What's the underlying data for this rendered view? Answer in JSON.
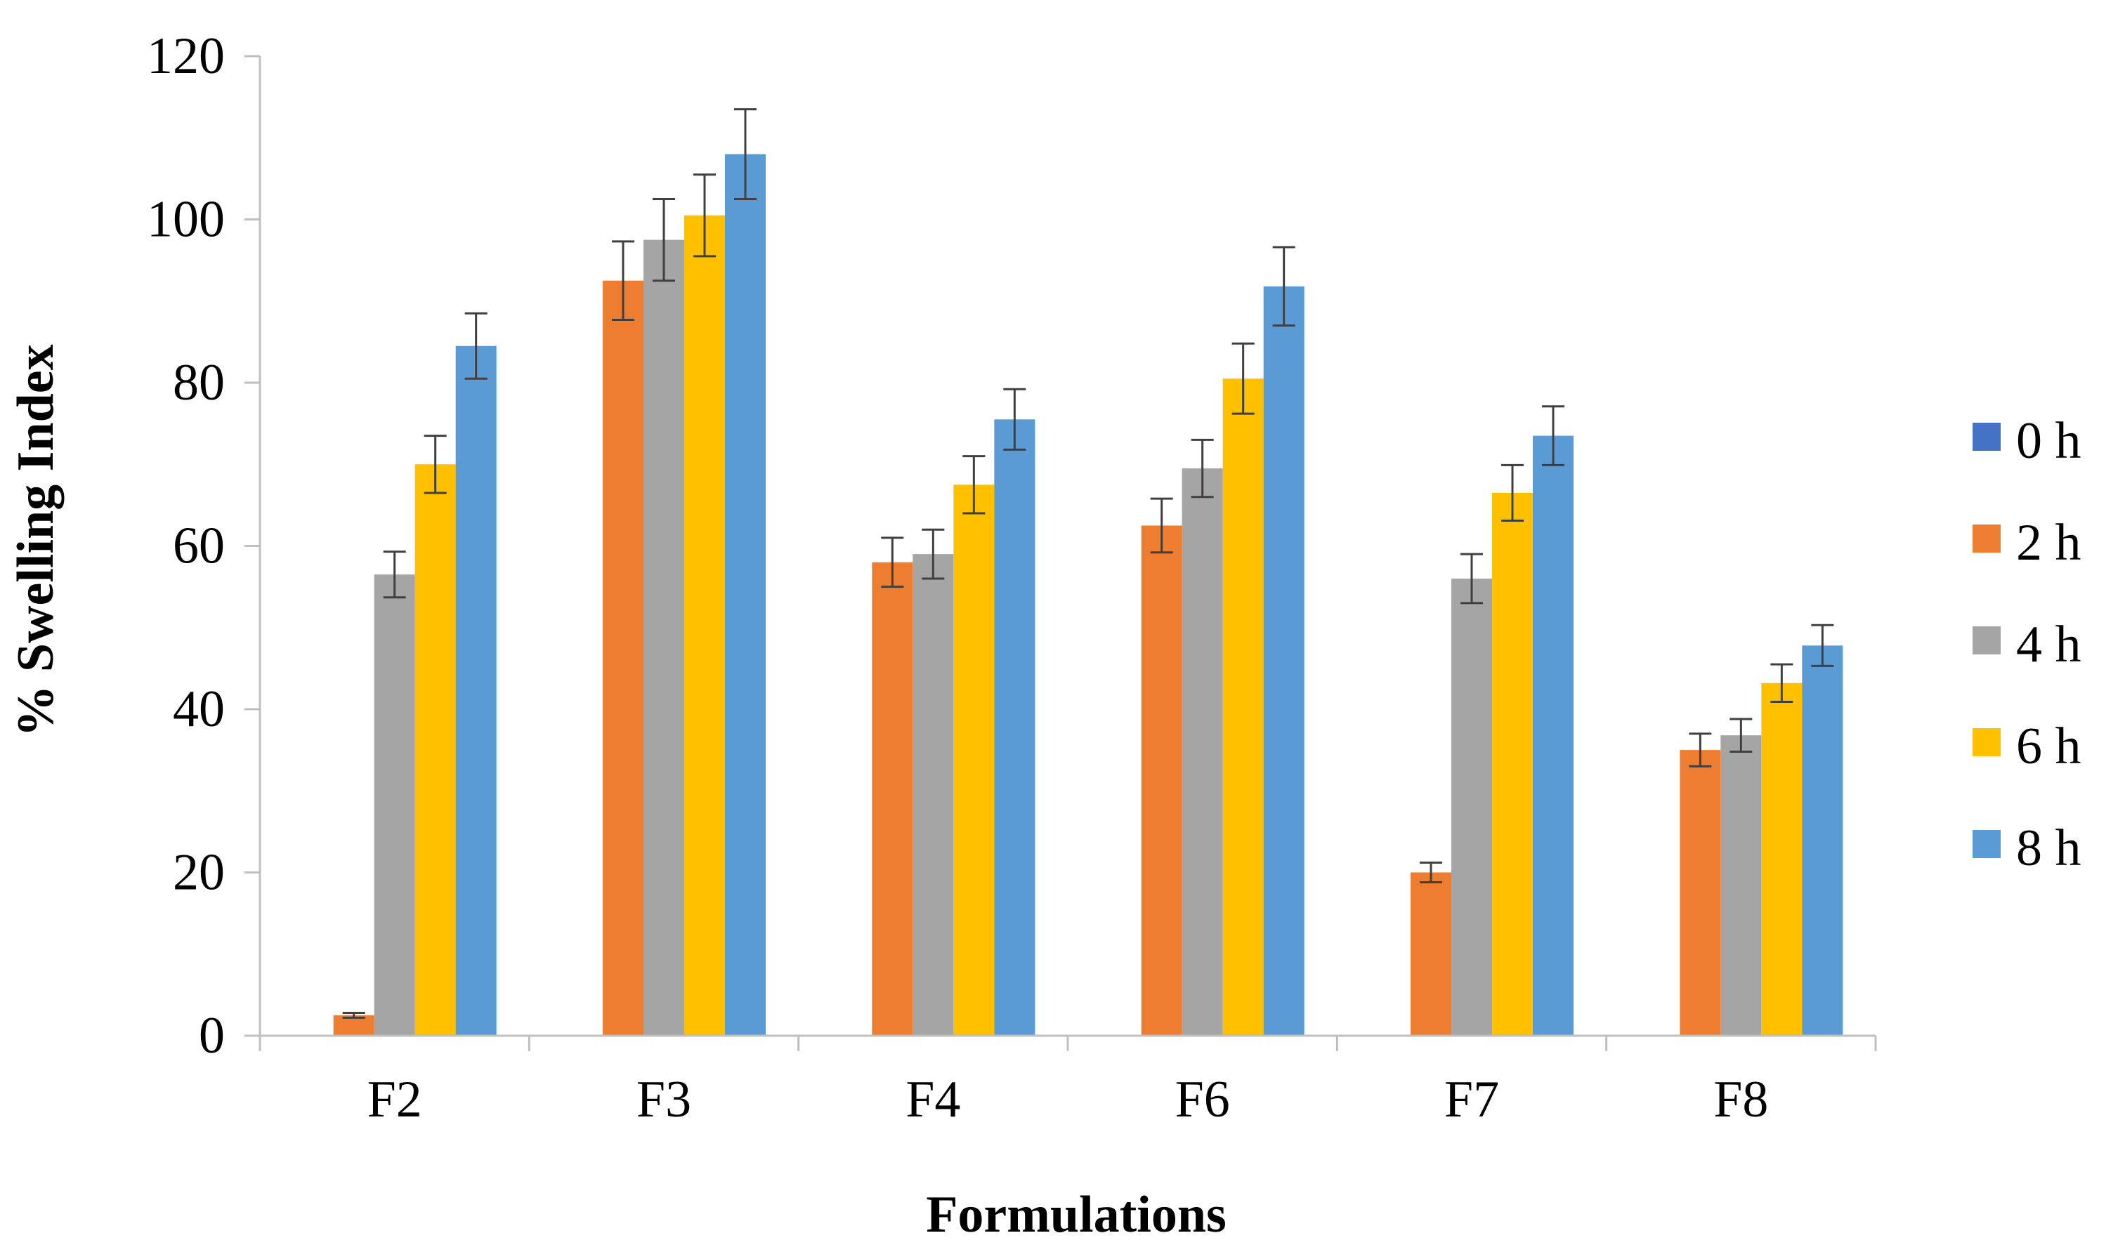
{
  "chart_data": {
    "type": "bar",
    "title": "",
    "xlabel": "Formulations",
    "ylabel": "% Swelling Index",
    "ylim": [
      0,
      120
    ],
    "yticks": [
      0,
      20,
      40,
      60,
      80,
      100,
      120
    ],
    "yticks_text": [
      "0",
      "20",
      "40",
      "60",
      "80",
      "100",
      "120"
    ],
    "grid": false,
    "legend_position": "right",
    "categories": [
      "F2",
      "F3",
      "F4",
      "F6",
      "F7",
      "F8"
    ],
    "series": [
      {
        "name": "0 h",
        "color": "#4472C4",
        "values": [
          0,
          0,
          0,
          0,
          0,
          0
        ],
        "errors": [
          0,
          0,
          0,
          0,
          0,
          0
        ]
      },
      {
        "name": "2 h",
        "color": "#ED7D31",
        "values": [
          2.5,
          92.5,
          58,
          62.5,
          20,
          35
        ],
        "errors": [
          0.3,
          4.8,
          3,
          3.3,
          1.2,
          2
        ]
      },
      {
        "name": "4 h",
        "color": "#A5A5A5",
        "values": [
          56.5,
          97.5,
          59,
          69.5,
          56,
          36.8
        ],
        "errors": [
          2.8,
          5,
          3,
          3.5,
          3,
          2
        ]
      },
      {
        "name": "6 h",
        "color": "#FFC000",
        "values": [
          70,
          100.5,
          67.5,
          80.5,
          66.5,
          43.2
        ],
        "errors": [
          3.5,
          5,
          3.5,
          4.3,
          3.4,
          2.3
        ]
      },
      {
        "name": "8 h",
        "color": "#5B9BD5",
        "values": [
          84.5,
          108,
          75.5,
          91.8,
          73.5,
          47.8
        ],
        "errors": [
          4,
          5.5,
          3.7,
          4.8,
          3.6,
          2.5
        ]
      }
    ]
  }
}
